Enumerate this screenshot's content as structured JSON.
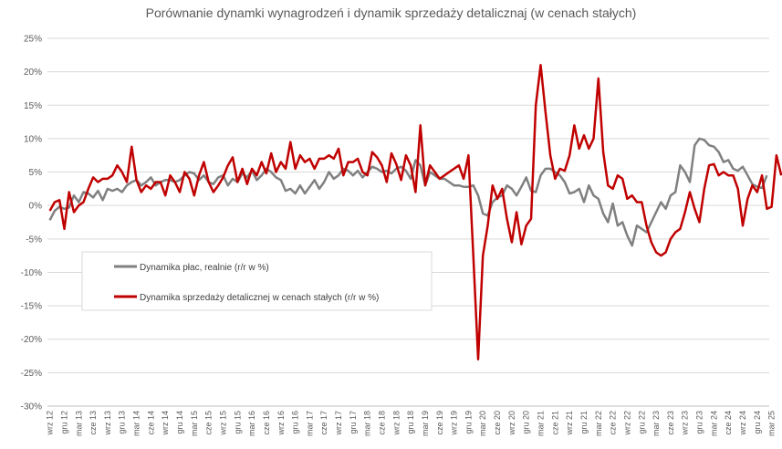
{
  "chart_data": {
    "type": "line",
    "title": "Porównanie dynamki wynagrodzeń i dynamik sprzedaży detalicznaj (w cenach stałych)",
    "xlabel": "",
    "ylabel": "",
    "ylim": [
      -30,
      25
    ],
    "y_ticks": [
      "25%",
      "20%",
      "15%",
      "10%",
      "5%",
      "0%",
      "-5%",
      "-10%",
      "-15%",
      "-20%",
      "-25%",
      "-30%"
    ],
    "y_tick_values": [
      25,
      20,
      15,
      10,
      5,
      0,
      -5,
      -10,
      -15,
      -20,
      -25,
      -30
    ],
    "grid": "horizontal",
    "legend_position": "left-middle",
    "x_start": "2012-09",
    "x_end": "2025-06",
    "x_tick_labels": [
      "wrz 12",
      "gru 12",
      "mar 13",
      "cze 13",
      "wrz 13",
      "gru 13",
      "mar 14",
      "cze 14",
      "wrz 14",
      "gru 14",
      "mar 15",
      "cze 15",
      "wrz 15",
      "gru 15",
      "mar 16",
      "cze 16",
      "wrz 16",
      "gru 16",
      "mar 17",
      "cze 17",
      "wrz 17",
      "gru 17",
      "mar 18",
      "cze 18",
      "wrz 18",
      "gru 18",
      "mar 19",
      "cze 19",
      "wrz 19",
      "gru 19",
      "mar 20",
      "cze 20",
      "wrz 20",
      "gru 20",
      "mar 21",
      "cze 21",
      "wrz 21",
      "gru 21",
      "mar 22",
      "cze 22",
      "wrz 22",
      "gru 22",
      "mar 23",
      "cze 23",
      "wrz 23",
      "gru 23",
      "mar 24",
      "cze 24",
      "wrz 24",
      "gru 24",
      "mar 25",
      "cze 25"
    ],
    "series": [
      {
        "name": "Dynamika płac, realnie (r/r w %)",
        "color": "#808080",
        "values": [
          -2.2,
          -0.8,
          -0.2,
          -0.5,
          -0.3,
          1.5,
          0.5,
          2.0,
          1.8,
          1.2,
          2.2,
          0.8,
          2.5,
          2.2,
          2.5,
          2.0,
          3.0,
          3.5,
          3.8,
          3.0,
          3.5,
          4.2,
          3.0,
          3.5,
          3.8,
          3.8,
          3.5,
          3.8,
          4.5,
          5.0,
          4.8,
          3.8,
          4.5,
          3.5,
          3.2,
          4.2,
          4.5,
          3.0,
          4.0,
          3.5,
          4.8,
          4.2,
          5.2,
          3.8,
          4.5,
          5.5,
          5.0,
          4.2,
          3.8,
          2.2,
          2.5,
          1.8,
          3.0,
          1.8,
          2.8,
          3.8,
          2.5,
          3.5,
          5.0,
          4.0,
          4.5,
          5.5,
          5.2,
          4.5,
          5.2,
          4.2,
          5.0,
          5.8,
          5.5,
          5.0,
          5.2,
          4.8,
          5.5,
          5.8,
          5.2,
          4.0,
          6.8,
          6.0,
          3.0,
          5.0,
          4.5,
          4.0,
          4.0,
          3.5,
          3.0,
          3.0,
          2.8,
          2.8,
          3.0,
          1.5,
          -1.2,
          -1.5,
          0.5,
          1.2,
          1.5,
          3.0,
          2.5,
          1.5,
          2.8,
          4.2,
          2.2,
          2.0,
          4.5,
          5.5,
          5.5,
          5.0,
          4.5,
          3.5,
          1.8,
          2.0,
          2.5,
          0.5,
          3.0,
          1.5,
          1.0,
          -1.2,
          -2.5,
          0.3,
          -3.0,
          -2.5,
          -4.5,
          -6.0,
          -3.0,
          -3.5,
          -4.0,
          -2.5,
          -1.0,
          0.5,
          -0.5,
          1.5,
          2.0,
          6.0,
          5.0,
          3.5,
          9.0,
          10.0,
          9.8,
          9.0,
          8.8,
          8.0,
          6.5,
          6.8,
          5.5,
          5.2,
          5.8,
          4.5,
          3.2,
          2.8,
          2.6,
          4.5
        ]
      },
      {
        "name": "Dynamika sprzedaży detalicznej w cenach stałych (r/r w %)",
        "color": "#c00000",
        "values": [
          -0.8,
          0.5,
          0.8,
          -3.5,
          2.0,
          -1.0,
          0.0,
          0.5,
          2.5,
          4.2,
          3.5,
          4.0,
          4.0,
          4.5,
          6.0,
          5.0,
          3.5,
          8.8,
          3.8,
          2.0,
          3.0,
          2.5,
          3.5,
          3.5,
          1.5,
          4.5,
          3.5,
          2.0,
          5.0,
          4.0,
          1.5,
          4.5,
          6.5,
          3.5,
          2.0,
          3.0,
          4.2,
          6.0,
          7.2,
          3.5,
          5.5,
          3.2,
          5.5,
          4.5,
          6.5,
          4.8,
          7.8,
          5.0,
          6.5,
          5.5,
          9.5,
          5.5,
          7.5,
          6.5,
          7.0,
          5.5,
          7.0,
          7.0,
          7.5,
          7.0,
          8.5,
          4.5,
          6.5,
          6.5,
          7.0,
          5.0,
          4.5,
          8.0,
          7.2,
          6.0,
          3.5,
          7.8,
          6.2,
          3.8,
          7.5,
          6.0,
          2.0,
          12.0,
          3.0,
          6.0,
          5.0,
          4.0,
          4.5,
          5.0,
          5.5,
          6.0,
          4.0,
          7.5,
          -7.5,
          -23.0,
          -7.5,
          -3.0,
          3.0,
          1.0,
          2.5,
          -2.0,
          -5.5,
          -1.0,
          -5.8,
          -3.0,
          -2.0,
          15.0,
          21.0,
          14.0,
          7.5,
          4.0,
          5.5,
          5.2,
          7.5,
          12.0,
          8.5,
          10.5,
          8.5,
          10.0,
          19.0,
          8.0,
          3.0,
          2.5,
          4.5,
          4.0,
          1.0,
          1.5,
          0.5,
          0.5,
          -3.0,
          -5.5,
          -7.0,
          -7.5,
          -7.0,
          -5.0,
          -4.0,
          -3.5,
          -1.0,
          2.0,
          -0.5,
          -2.5,
          2.5,
          6.0,
          6.2,
          4.5,
          5.0,
          4.5,
          4.5,
          2.5,
          -3.0,
          1.0,
          3.0,
          2.0,
          4.5,
          -0.5,
          -0.2,
          7.5,
          4.5
        ]
      }
    ]
  }
}
